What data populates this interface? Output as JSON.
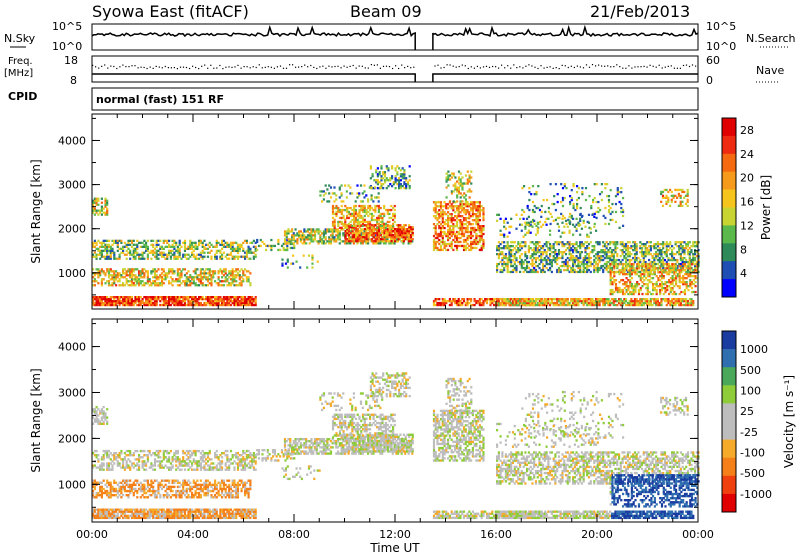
{
  "header": {
    "radar": "Syowa East (fitACF)",
    "beam": "Beam 09",
    "date": "21/Feb/2013"
  },
  "panel_labels": {
    "nsky": "N.Sky",
    "nsearch": "N.Search",
    "freq_top": "Freq.",
    "freq_unit": "[MHz]",
    "cpid": "CPID",
    "nave": "Nave",
    "mode": "normal (fast) 151 RF"
  },
  "noise_axis": {
    "left_top": "10^5",
    "left_bottom": "10^0",
    "right_top": "10^5",
    "right_bottom": "10^0"
  },
  "freq_axis": {
    "left_top": "18",
    "left_bottom": "8",
    "right_top": "60",
    "right_bottom": "0"
  },
  "colors": {
    "power": [
      "#0000ff",
      "#1f4fb4",
      "#2f8a5a",
      "#5bb84a",
      "#c8d432",
      "#f5c51e",
      "#f59a1a",
      "#f56a10",
      "#ee2a12",
      "#e00000"
    ],
    "velocity": [
      "#e00000",
      "#f04010",
      "#f5801a",
      "#f5aa2a",
      "#bdbdbd",
      "#bdbdbd",
      "#8fcc3a",
      "#4aa85a",
      "#2f6fb0",
      "#1a3ca0"
    ]
  },
  "chart_data": [
    {
      "type": "heatmap",
      "title": "Power",
      "xlabel": "Time UT",
      "ylabel": "Slant Range [km]",
      "x_ticks": [
        "00:00",
        "04:00",
        "08:00",
        "12:00",
        "16:00",
        "20:00",
        "00:00"
      ],
      "y_ticks": [
        1000,
        2000,
        3000,
        4000
      ],
      "xlim": [
        0,
        24
      ],
      "ylim": [
        180,
        4600
      ],
      "colorbar_label": "Power [dB]",
      "colorbar_ticks": [
        4,
        8,
        12,
        16,
        20,
        24,
        28
      ],
      "colorbar_range": [
        0,
        30
      ],
      "data_gap_hours": [
        12.8,
        13.5
      ]
    },
    {
      "type": "heatmap",
      "title": "Velocity",
      "xlabel": "Time UT",
      "ylabel": "Slant Range [km]",
      "x_ticks": [
        "00:00",
        "04:00",
        "08:00",
        "12:00",
        "16:00",
        "20:00",
        "00:00"
      ],
      "y_ticks": [
        1000,
        2000,
        3000,
        4000
      ],
      "xlim": [
        0,
        24
      ],
      "ylim": [
        180,
        4600
      ],
      "colorbar_label": "Velocity",
      "colorbar_unit": "[m s⁻¹]",
      "colorbar_ticks": [
        "1000",
        "500",
        "100",
        "25",
        "-25",
        "-100",
        "-500",
        "-1000"
      ],
      "data_gap_hours": [
        12.8,
        13.5
      ]
    }
  ]
}
